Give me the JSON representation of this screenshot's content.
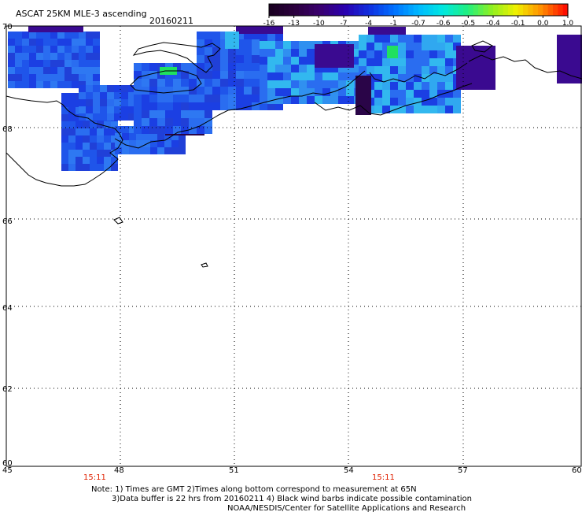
{
  "header": {
    "title": "ASCAT 25KM MLE-3 ascending",
    "date": "20160211"
  },
  "colorbar": {
    "labels": [
      "-16",
      "-13",
      "-10",
      "-7",
      "-4",
      "-1",
      "-0.7",
      "-0.6",
      "-0.5",
      "-0.4",
      "-0.1",
      "0.0",
      "1.0"
    ],
    "colors": [
      "#1a0022",
      "#2c0040",
      "#3a0070",
      "#2a00b0",
      "#1030e0",
      "#0070ff",
      "#00b8ff",
      "#00e8e0",
      "#20f080",
      "#90f020",
      "#f0f000",
      "#ff9000",
      "#ff1000"
    ]
  },
  "map": {
    "lat_labels": [
      "70",
      "68",
      "66",
      "64",
      "62",
      "60"
    ],
    "lon_labels": [
      "45",
      "48",
      "51",
      "54",
      "57",
      "60"
    ],
    "times": [
      "15:11",
      "15:11"
    ],
    "colors": {
      "deep_blue": "#1b3fe3",
      "mid_blue": "#2a6df0",
      "cyan": "#32b8ef",
      "purple": "#3a0a90",
      "dark_purple": "#2a0548",
      "green": "#20e060",
      "time_red": "#e02000"
    }
  },
  "notes": {
    "line1": "Note: 1) Times are GMT 2)Times along bottom correspond to measurement at 65N",
    "line2": "3)Data buffer is 22 hrs from 20160211 4) Black wind barbs indicate possible contamination",
    "line3": "NOAA/NESDIS/Center for Satellite Applications and Research"
  }
}
